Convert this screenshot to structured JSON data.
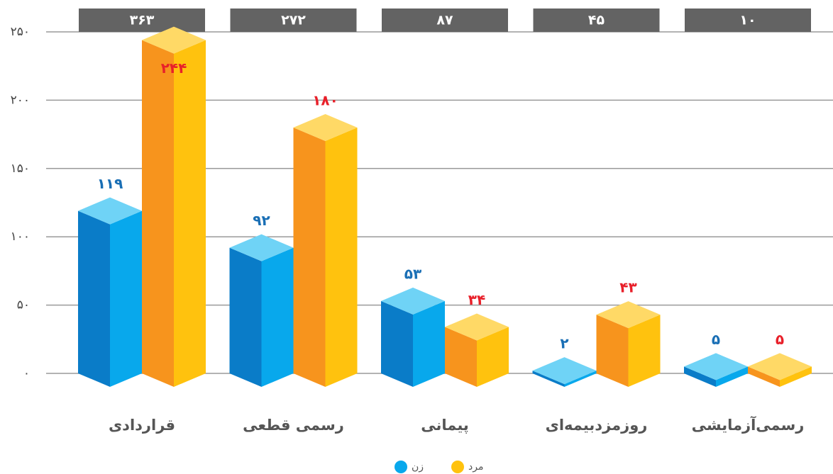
{
  "chart_data": {
    "type": "bar3d",
    "categories": [
      "قراردادی",
      "رسمی قطعی",
      "پیمانی",
      "روزمزدبیمه‌ای",
      "رسمی‌آزمایشی"
    ],
    "series": [
      {
        "name": "زن",
        "color": "#08a8ec",
        "values": [
          119,
          92,
          53,
          2,
          5
        ],
        "value_labels": [
          "۱۱۹",
          "۹۲",
          "۵۳",
          "۲",
          "۵"
        ]
      },
      {
        "name": "مرد",
        "color": "#ffc20e",
        "values": [
          244,
          180,
          34,
          43,
          5
        ],
        "value_labels": [
          "۲۴۴",
          "۱۸۰",
          "۳۴",
          "۴۳",
          "۵"
        ]
      }
    ],
    "totals": [
      363,
      272,
      87,
      45,
      10
    ],
    "total_labels": [
      "۳۶۳",
      "۲۷۲",
      "۸۷",
      "۴۵",
      "۱۰"
    ],
    "ylim": [
      0,
      250
    ],
    "yticks": [
      {
        "value": 0,
        "label": "۰"
      },
      {
        "value": 50,
        "label": "۵۰"
      },
      {
        "value": 100,
        "label": "۱۰۰"
      },
      {
        "value": 150,
        "label": "۱۵۰"
      },
      {
        "value": 200,
        "label": "۲۰۰"
      },
      {
        "value": 250,
        "label": "۲۵۰"
      }
    ],
    "grid": true
  }
}
